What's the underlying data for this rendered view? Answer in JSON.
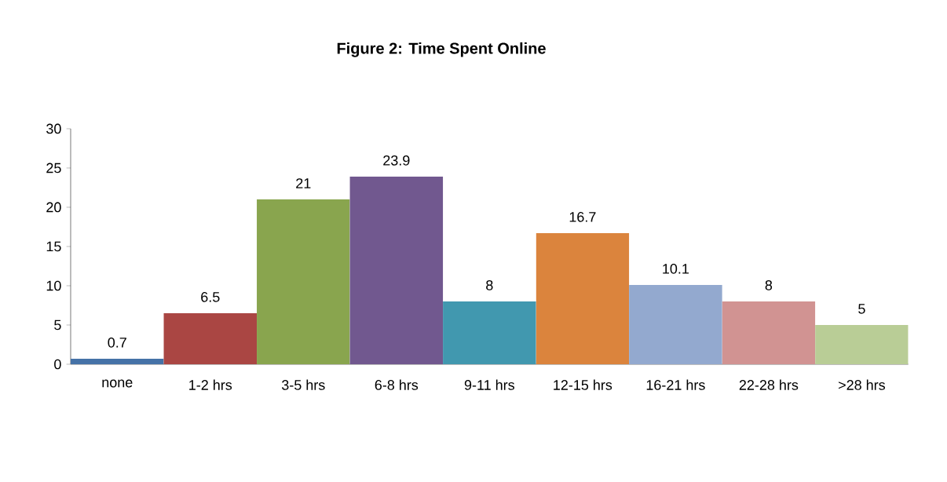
{
  "chart_data": {
    "type": "bar",
    "title": "Figure 2: Time Spent Online",
    "categories": [
      "none",
      "1-2 hrs",
      "3-5 hrs",
      "6-8 hrs",
      "9-11 hrs",
      "12-15 hrs",
      "16-21 hrs",
      "22-28 hrs",
      ">28 hrs"
    ],
    "values": [
      0.7,
      6.5,
      21,
      23.9,
      8,
      16.7,
      10.1,
      8,
      5
    ],
    "colors": [
      "#4572a7",
      "#aa4643",
      "#89a54e",
      "#71588f",
      "#4198af",
      "#db843d",
      "#93a9cf",
      "#d19392",
      "#b9cd96"
    ],
    "ylim": [
      0,
      30
    ],
    "yticks": [
      0,
      5,
      10,
      15,
      20,
      25,
      30
    ],
    "data_labels": true
  }
}
